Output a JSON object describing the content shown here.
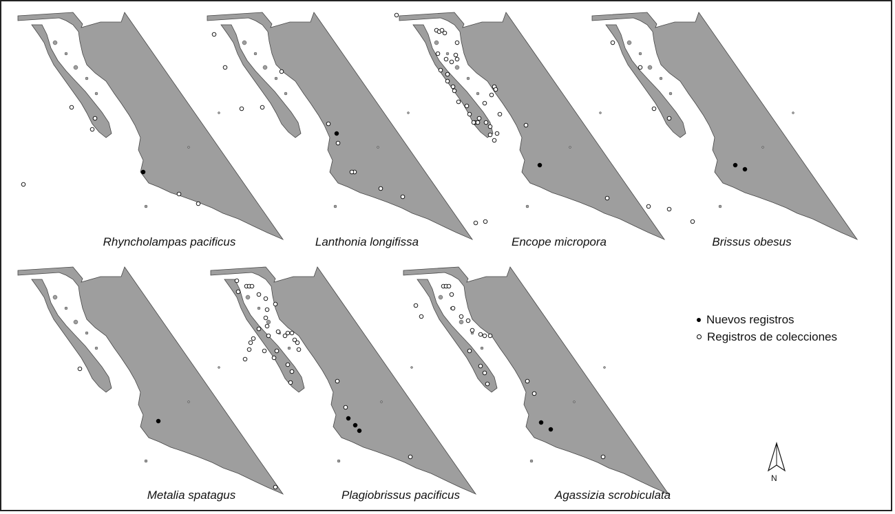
{
  "legend": {
    "new_records": "Nuevos registros",
    "collection_records": "Registros de colecciones"
  },
  "north_label": "N",
  "colors": {
    "land": "#9e9e9e",
    "new": "#000000",
    "collection": "#ffffff"
  },
  "panels": [
    {
      "species": "Rhyncholampas pacificus"
    },
    {
      "species": "Lanthonia longifissa"
    },
    {
      "species": "Encope micropora"
    },
    {
      "species": "Brissus obesus"
    },
    {
      "species": "Metalia spatagus"
    },
    {
      "species": "Plagiobrissus pacificus"
    },
    {
      "species": "Agassizia scrobiculata"
    }
  ]
}
